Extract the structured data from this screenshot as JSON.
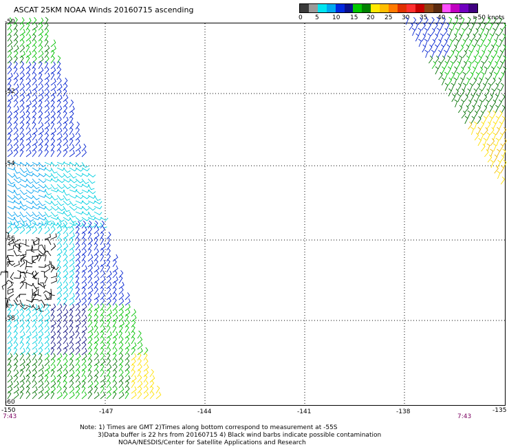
{
  "title": "ASCAT 25KM NOAA Winds 20160715 ascending",
  "colorbar": {
    "labels": [
      "0",
      "5",
      "10",
      "15",
      "20",
      "25",
      "30",
      "35",
      "40",
      "45",
      ">50 knots"
    ],
    "colors": [
      "#3a3a3a",
      "#9a9a9a",
      "#00e5f0",
      "#00a8f0",
      "#0028e0",
      "#0a108a",
      "#00c800",
      "#008000",
      "#ffe800",
      "#ffbe00",
      "#ff7a00",
      "#e03000",
      "#ff3030",
      "#c80000",
      "#8b4513",
      "#5a2a10",
      "#ff50ff",
      "#c000c0",
      "#7000c0",
      "#400080"
    ]
  },
  "lat_labels": [
    "-50",
    "-52",
    "-54",
    "-56",
    "-58",
    "-60"
  ],
  "lon_labels": [
    "-150",
    "-147",
    "-144",
    "-141",
    "-138",
    "-135"
  ],
  "time_labels": {
    "left": "7:43",
    "right": "7:43"
  },
  "notes": [
    "Note: 1) Times are GMT 2)Times along bottom correspond to measurement at -55S",
    "3)Data buffer is 22 hrs from 20160715 4) Black wind barbs indicate possible contamination",
    "NOAA/NESDIS/Center for Satellite Applications and Research"
  ],
  "barb_colors": {
    "calm": "#000000",
    "cyan": "#00cfe0",
    "light_blue": "#00a0f0",
    "blue": "#0020d0",
    "dark_blue": "#101080",
    "green": "#00c000",
    "dark_green": "#007000",
    "yellow": "#ffe000",
    "orange_yellow": "#f0b800"
  }
}
